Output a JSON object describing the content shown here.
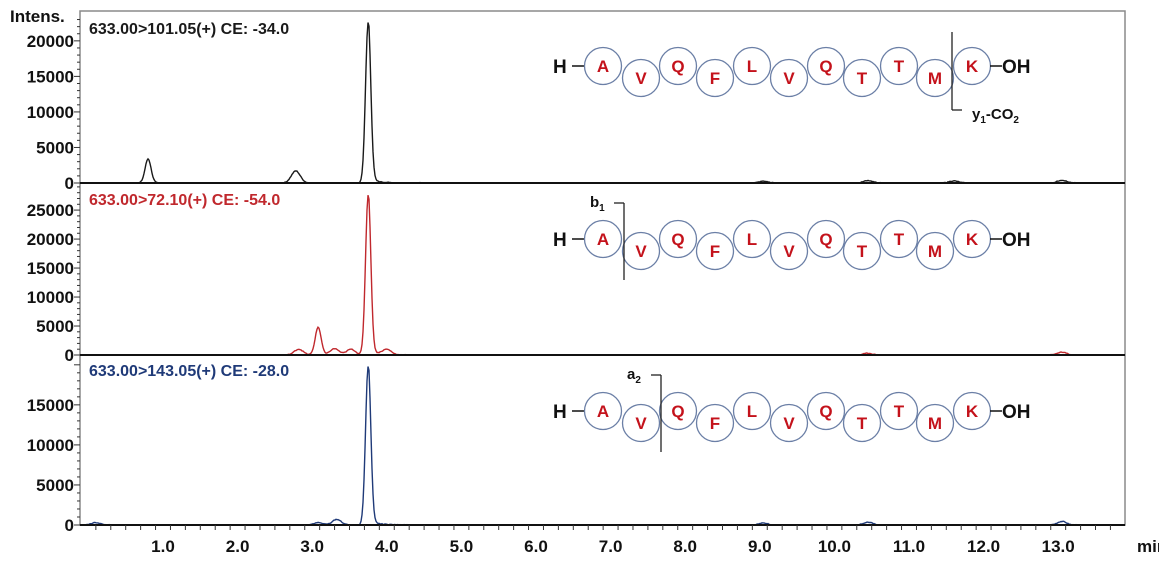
{
  "chart_data": {
    "type": "line",
    "title": "",
    "xlabel": "min",
    "ylabel": "Intens.",
    "x_axis": {
      "label": "min",
      "range": [
        -0.1,
        13.9
      ],
      "ticks": [
        1.0,
        2.0,
        3.0,
        4.0,
        5.0,
        6.0,
        7.0,
        8.0,
        9.0,
        10.0,
        11.0,
        12.0,
        13.0
      ],
      "tick_labels": [
        "1.0",
        "2.0",
        "3.0",
        "4.0",
        "5.0",
        "6.0",
        "7.0",
        "8.0",
        "9.0",
        "10.0",
        "11.0",
        "12.0",
        "13.0"
      ]
    },
    "grid": false,
    "legend": "none (panel titles inside each panel, top-left)",
    "panels": [
      {
        "name": "633.00>101.05(+) CE: -34.0",
        "color": "#1a1a1a",
        "ylim": [
          0,
          24200
        ],
        "yticks": [
          0,
          5000,
          10000,
          15000,
          20000
        ],
        "peaks": [
          {
            "time": 0.8,
            "intensity": 3400
          },
          {
            "time": 2.78,
            "intensity": 1700
          },
          {
            "time": 3.75,
            "intensity": 22600
          },
          {
            "time": 9.05,
            "intensity": 250
          },
          {
            "time": 10.45,
            "intensity": 350
          },
          {
            "time": 11.6,
            "intensity": 300
          },
          {
            "time": 13.05,
            "intensity": 400
          }
        ],
        "annotation": {
          "sequence": [
            "A",
            "V",
            "Q",
            "F",
            "L",
            "V",
            "Q",
            "T",
            "T",
            "M",
            "K"
          ],
          "n_term": "H",
          "c_term": "OH",
          "fragment": "y1-CO2",
          "cleavage_after_index": 9
        }
      },
      {
        "name": "633.00>72.10(+) CE: -54.0",
        "color": "#c0282d",
        "ylim": [
          0,
          29500
        ],
        "yticks": [
          0,
          5000,
          10000,
          15000,
          20000,
          25000
        ],
        "peaks": [
          {
            "time": 2.82,
            "intensity": 1000
          },
          {
            "time": 3.08,
            "intensity": 4800
          },
          {
            "time": 3.3,
            "intensity": 1100
          },
          {
            "time": 3.52,
            "intensity": 1000
          },
          {
            "time": 3.75,
            "intensity": 27600
          },
          {
            "time": 4.0,
            "intensity": 900
          },
          {
            "time": 10.45,
            "intensity": 300
          },
          {
            "time": 13.05,
            "intensity": 500
          }
        ],
        "annotation": {
          "sequence": [
            "A",
            "V",
            "Q",
            "F",
            "L",
            "V",
            "Q",
            "T",
            "T",
            "M",
            "K"
          ],
          "n_term": "H",
          "c_term": "OH",
          "fragment": "b1",
          "cleavage_after_index": 0
        }
      },
      {
        "name": "633.00>143.05(+) CE: -28.0",
        "color": "#1f3a78",
        "ylim": [
          0,
          21100
        ],
        "yticks": [
          0,
          5000,
          10000,
          15000
        ],
        "peaks": [
          {
            "time": 0.1,
            "intensity": 300
          },
          {
            "time": 3.08,
            "intensity": 300
          },
          {
            "time": 3.33,
            "intensity": 700
          },
          {
            "time": 3.75,
            "intensity": 19800
          },
          {
            "time": 9.05,
            "intensity": 250
          },
          {
            "time": 10.45,
            "intensity": 350
          },
          {
            "time": 13.05,
            "intensity": 450
          }
        ],
        "annotation": {
          "sequence": [
            "A",
            "V",
            "Q",
            "F",
            "L",
            "V",
            "Q",
            "T",
            "T",
            "M",
            "K"
          ],
          "n_term": "H",
          "c_term": "OH",
          "fragment": "a2",
          "cleavage_after_index": 1
        }
      }
    ]
  },
  "labels": {
    "y_axis_title": "Intens.",
    "x_axis_unit": "min",
    "panel_titles": [
      "633.00>101.05(+) CE: -34.0",
      "633.00>72.10(+) CE: -54.0",
      "633.00>143.05(+) CE: -28.0"
    ],
    "fragments": [
      {
        "main": "y",
        "sub": "1",
        "rest": "-CO",
        "sub2": "2"
      },
      {
        "main": "b",
        "sub": "1"
      },
      {
        "main": "a",
        "sub": "2"
      }
    ],
    "n_term": "H",
    "c_term": "OH"
  },
  "colors": {
    "trace_black": "#1a1a1a",
    "trace_red": "#c0282d",
    "trace_blue": "#1f3a78",
    "residue_circle": "#6b7fa6",
    "residue_letter": "#c4121b"
  }
}
